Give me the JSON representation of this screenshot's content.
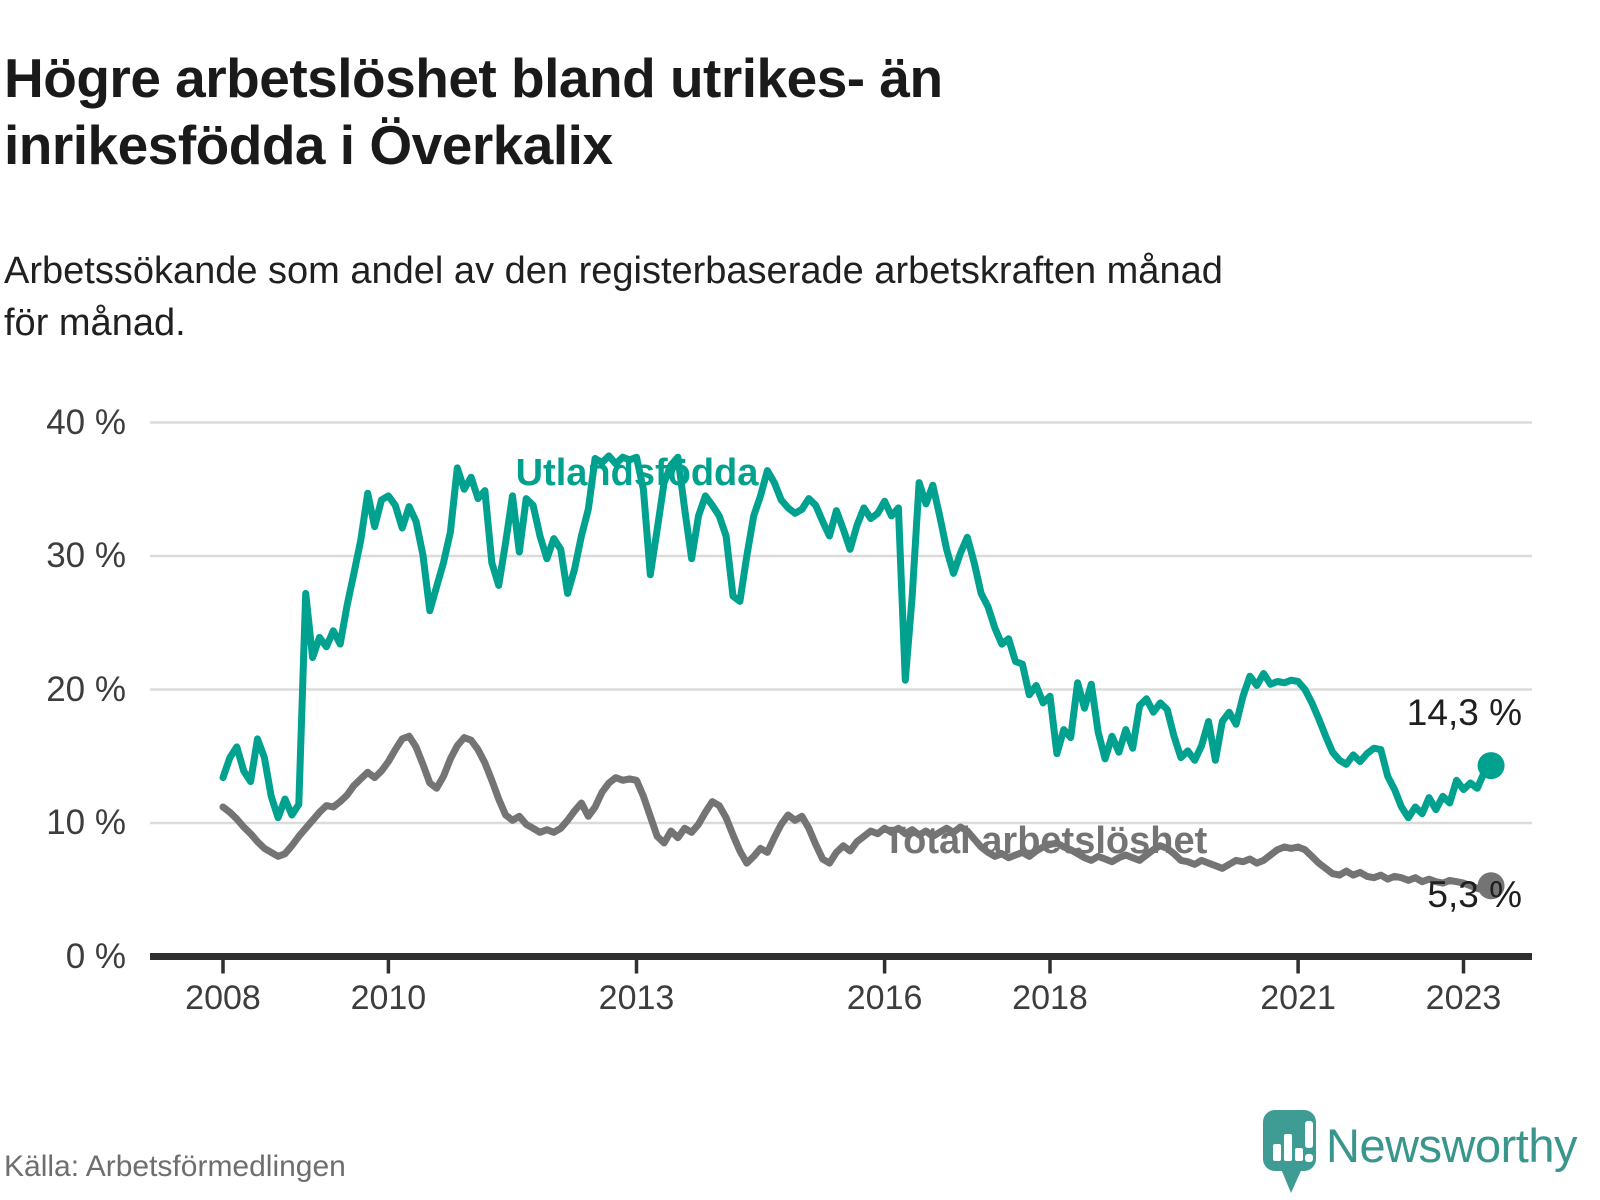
{
  "title": {
    "line1": "Högre arbetslöshet bland utrikes- än",
    "line2": "inrikesfödda i Överkalix"
  },
  "subtitle": {
    "line1": "Arbetssökande som andel av den registerbaserade arbetskraften månad",
    "line2": "för månad."
  },
  "source": "Källa: Arbetsförmedlingen",
  "logo": {
    "brand": "Newsworthy",
    "icon": "newsworthy-chart-bubble",
    "bubble_color": "#3E9C94",
    "text_color": "#39968D"
  },
  "chart_data": {
    "type": "line",
    "title": "Högre arbetslöshet bland utrikes- än inrikesfödda i Överkalix",
    "xlabel": "",
    "ylabel": "Arbetssökande som andel av den registerbaserade arbetskraften",
    "interval": "monthly",
    "x_start": "2008-01",
    "x_end": "2023-05",
    "ylim": [
      0,
      40
    ],
    "grid": "horizontal",
    "legend_position": "inline-labels",
    "y_ticks": [
      {
        "value": 40,
        "label": "40 %"
      },
      {
        "value": 30,
        "label": "30 %"
      },
      {
        "value": 20,
        "label": "20 %"
      },
      {
        "value": 10,
        "label": "10 %"
      },
      {
        "value": 0,
        "label": "0 %"
      }
    ],
    "x_ticks": [
      {
        "year": 2008,
        "label": "2008"
      },
      {
        "year": 2010,
        "label": "2010"
      },
      {
        "year": 2013,
        "label": "2013"
      },
      {
        "year": 2016,
        "label": "2016"
      },
      {
        "year": 2018,
        "label": "2018"
      },
      {
        "year": 2021,
        "label": "2021"
      },
      {
        "year": 2023,
        "label": "2023"
      }
    ],
    "series": [
      {
        "name": "Utlandsfödda",
        "color": "#00A18F",
        "end_value": 14.3,
        "end_label": "14,3 %",
        "values": [
          13.4,
          14.9,
          15.7,
          13.9,
          13.1,
          16.3,
          14.9,
          12.0,
          10.4,
          11.8,
          10.6,
          11.4,
          27.2,
          22.4,
          23.9,
          23.2,
          24.4,
          23.4,
          26.3,
          28.7,
          31.2,
          34.7,
          32.2,
          34.2,
          34.5,
          33.8,
          32.1,
          33.7,
          32.6,
          30.1,
          25.9,
          27.7,
          29.5,
          31.8,
          36.6,
          35.0,
          35.9,
          34.3,
          34.9,
          29.5,
          27.8,
          31.0,
          34.5,
          30.3,
          34.3,
          33.8,
          31.5,
          29.8,
          31.3,
          30.5,
          27.2,
          29.0,
          31.5,
          33.5,
          37.3,
          37.0,
          37.5,
          36.9,
          37.4,
          37.2,
          37.4,
          35.0,
          28.6,
          32.0,
          35.5,
          36.8,
          37.4,
          33.5,
          29.8,
          33.0,
          34.5,
          33.8,
          33.0,
          31.5,
          27.0,
          26.6,
          30.0,
          33.0,
          34.5,
          36.4,
          35.5,
          34.2,
          33.6,
          33.2,
          33.5,
          34.3,
          33.8,
          32.6,
          31.5,
          33.4,
          32.0,
          30.5,
          32.3,
          33.6,
          32.8,
          33.2,
          34.1,
          33.0,
          33.6,
          20.7,
          27.0,
          35.5,
          33.9,
          35.3,
          33.0,
          30.5,
          28.7,
          30.2,
          31.4,
          29.5,
          27.2,
          26.2,
          24.6,
          23.4,
          23.8,
          22.1,
          21.9,
          19.6,
          20.3,
          19.0,
          19.5,
          15.2,
          17.0,
          16.4,
          20.5,
          18.6,
          20.4,
          16.8,
          14.8,
          16.5,
          15.3,
          17.0,
          15.6,
          18.8,
          19.3,
          18.3,
          19.0,
          18.5,
          16.5,
          14.9,
          15.4,
          14.7,
          15.8,
          17.6,
          14.7,
          17.6,
          18.3,
          17.4,
          19.5,
          21.0,
          20.3,
          21.2,
          20.4,
          20.6,
          20.5,
          20.7,
          20.6,
          20.0,
          19.0,
          17.8,
          16.5,
          15.3,
          14.7,
          14.4,
          15.1,
          14.6,
          15.2,
          15.6,
          15.5,
          13.5,
          12.5,
          11.2,
          10.4,
          11.2,
          10.7,
          11.9,
          11.0,
          12.0,
          11.5,
          13.2,
          12.5,
          13.0,
          12.6,
          13.8,
          14.3
        ]
      },
      {
        "name": "Total arbetslöshet",
        "color": "#747474",
        "end_value": 5.3,
        "end_label": "5,3 %",
        "values": [
          11.2,
          10.8,
          10.3,
          9.7,
          9.2,
          8.6,
          8.1,
          7.8,
          7.5,
          7.7,
          8.3,
          9.0,
          9.6,
          10.2,
          10.8,
          11.3,
          11.2,
          11.6,
          12.1,
          12.8,
          13.3,
          13.8,
          13.4,
          13.9,
          14.6,
          15.5,
          16.3,
          16.5,
          15.7,
          14.4,
          13.0,
          12.6,
          13.5,
          14.8,
          15.8,
          16.4,
          16.2,
          15.5,
          14.5,
          13.2,
          11.8,
          10.6,
          10.2,
          10.5,
          9.9,
          9.6,
          9.3,
          9.5,
          9.3,
          9.6,
          10.2,
          10.9,
          11.5,
          10.5,
          11.2,
          12.3,
          13.0,
          13.4,
          13.2,
          13.3,
          13.2,
          12.0,
          10.5,
          9.0,
          8.5,
          9.4,
          8.9,
          9.6,
          9.3,
          9.9,
          10.8,
          11.6,
          11.3,
          10.4,
          9.1,
          7.9,
          7.0,
          7.5,
          8.1,
          7.8,
          8.9,
          9.9,
          10.6,
          10.2,
          10.5,
          9.6,
          8.4,
          7.3,
          7.0,
          7.8,
          8.3,
          7.9,
          8.6,
          9.0,
          9.4,
          9.2,
          9.6,
          9.3,
          9.6,
          9.2,
          9.5,
          9.1,
          9.4,
          9.0,
          9.3,
          9.6,
          9.3,
          9.7,
          9.4,
          8.8,
          8.2,
          7.8,
          7.5,
          7.7,
          7.4,
          7.6,
          7.8,
          7.5,
          7.9,
          8.2,
          8.4,
          8.5,
          8.2,
          8.0,
          7.7,
          7.4,
          7.2,
          7.5,
          7.3,
          7.1,
          7.4,
          7.6,
          7.4,
          7.2,
          7.6,
          8.0,
          8.3,
          8.1,
          7.7,
          7.2,
          7.1,
          6.9,
          7.2,
          7.0,
          6.8,
          6.6,
          6.9,
          7.2,
          7.1,
          7.3,
          7.0,
          7.2,
          7.6,
          8.0,
          8.2,
          8.1,
          8.2,
          8.0,
          7.5,
          7.0,
          6.6,
          6.2,
          6.1,
          6.4,
          6.1,
          6.3,
          6.0,
          5.9,
          6.1,
          5.8,
          6.0,
          5.9,
          5.7,
          5.9,
          5.6,
          5.8,
          5.6,
          5.5,
          5.7,
          5.6,
          5.5,
          5.3,
          5.1,
          5.0,
          5.3
        ]
      }
    ]
  }
}
